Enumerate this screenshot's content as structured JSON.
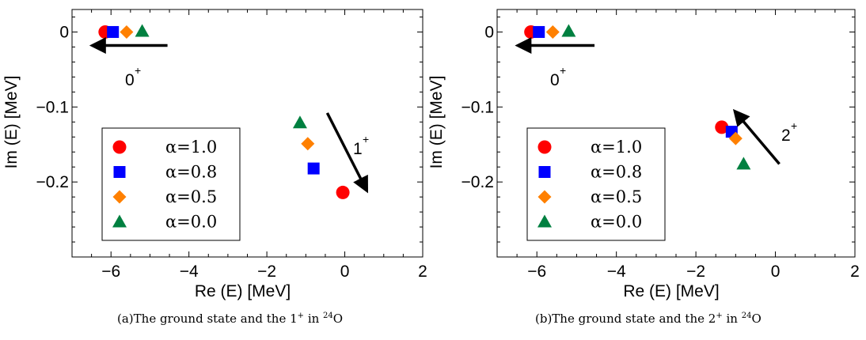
{
  "chart_data": [
    {
      "type": "scatter",
      "title": "",
      "xlabel": "Re (E) [MeV]",
      "ylabel": "Im (E) [MeV]",
      "xlim": [
        -7,
        2
      ],
      "ylim": [
        -0.3,
        0.03
      ],
      "xticks": [
        -6,
        -4,
        -2,
        0,
        2
      ],
      "xtick_labels": [
        "−6",
        "−4",
        "−2",
        "0",
        "2"
      ],
      "yticks": [
        0,
        -0.1,
        -0.2
      ],
      "ytick_labels": [
        "0",
        "−0.1",
        "−0.2"
      ],
      "grid": false,
      "legend_position": "lower-left",
      "series": [
        {
          "name": "α=1.0",
          "marker": "circle",
          "color": "#ff0000",
          "x": [
            -6.15,
            -0.05
          ],
          "y": [
            0.0,
            -0.214
          ]
        },
        {
          "name": "α=0.8",
          "marker": "square",
          "color": "#0000ff",
          "x": [
            -5.95,
            -0.8
          ],
          "y": [
            0.0,
            -0.182
          ]
        },
        {
          "name": "α=0.5",
          "marker": "diamond",
          "color": "#ff8000",
          "x": [
            -5.6,
            -0.95
          ],
          "y": [
            0.0,
            -0.149
          ]
        },
        {
          "name": "α=0.0",
          "marker": "triangle",
          "color": "#008040",
          "x": [
            -5.2,
            -1.15
          ],
          "y": [
            0.001,
            -0.121
          ]
        }
      ],
      "annotations": [
        {
          "label": "0",
          "sup": "+",
          "arrow_from": [
            -4.55,
            -0.018
          ],
          "arrow_to": [
            -6.45,
            -0.018
          ]
        },
        {
          "label": "1",
          "sup": "+",
          "arrow_from": [
            -0.45,
            -0.108
          ],
          "arrow_to": [
            0.55,
            -0.21
          ]
        }
      ],
      "caption_prefix": "(a)The ground state and the 1",
      "caption_sup1": "+",
      "caption_mid": " in ",
      "caption_sup2": "24",
      "caption_suffix": "O"
    },
    {
      "type": "scatter",
      "title": "",
      "xlabel": "Re (E) [MeV]",
      "ylabel": "Im (E) [MeV]",
      "xlim": [
        -7,
        2
      ],
      "ylim": [
        -0.3,
        0.03
      ],
      "xticks": [
        -6,
        -4,
        -2,
        0,
        2
      ],
      "xtick_labels": [
        "−6",
        "−4",
        "−2",
        "0",
        "2"
      ],
      "yticks": [
        0,
        -0.1,
        -0.2
      ],
      "ytick_labels": [
        "0",
        "−0.1",
        "−0.2"
      ],
      "grid": false,
      "legend_position": "lower-left",
      "series": [
        {
          "name": "α=1.0",
          "marker": "circle",
          "color": "#ff0000",
          "x": [
            -6.15,
            -1.35
          ],
          "y": [
            0.0,
            -0.127
          ]
        },
        {
          "name": "α=0.8",
          "marker": "square",
          "color": "#0000ff",
          "x": [
            -5.95,
            -1.1
          ],
          "y": [
            0.0,
            -0.133
          ]
        },
        {
          "name": "α=0.5",
          "marker": "diamond",
          "color": "#ff8000",
          "x": [
            -5.6,
            -1.0
          ],
          "y": [
            0.0,
            -0.142
          ]
        },
        {
          "name": "α=0.0",
          "marker": "triangle",
          "color": "#008040",
          "x": [
            -5.2,
            -0.8
          ],
          "y": [
            0.001,
            -0.176
          ]
        }
      ],
      "annotations": [
        {
          "label": "0",
          "sup": "+",
          "arrow_from": [
            -4.55,
            -0.018
          ],
          "arrow_to": [
            -6.45,
            -0.018
          ]
        },
        {
          "label": "2",
          "sup": "+",
          "arrow_from": [
            0.1,
            -0.176
          ],
          "arrow_to": [
            -1.0,
            -0.107
          ]
        }
      ],
      "caption_prefix": "(b)The ground state and the 2",
      "caption_sup1": "+",
      "caption_mid": " in ",
      "caption_sup2": "24",
      "caption_suffix": "O"
    }
  ]
}
